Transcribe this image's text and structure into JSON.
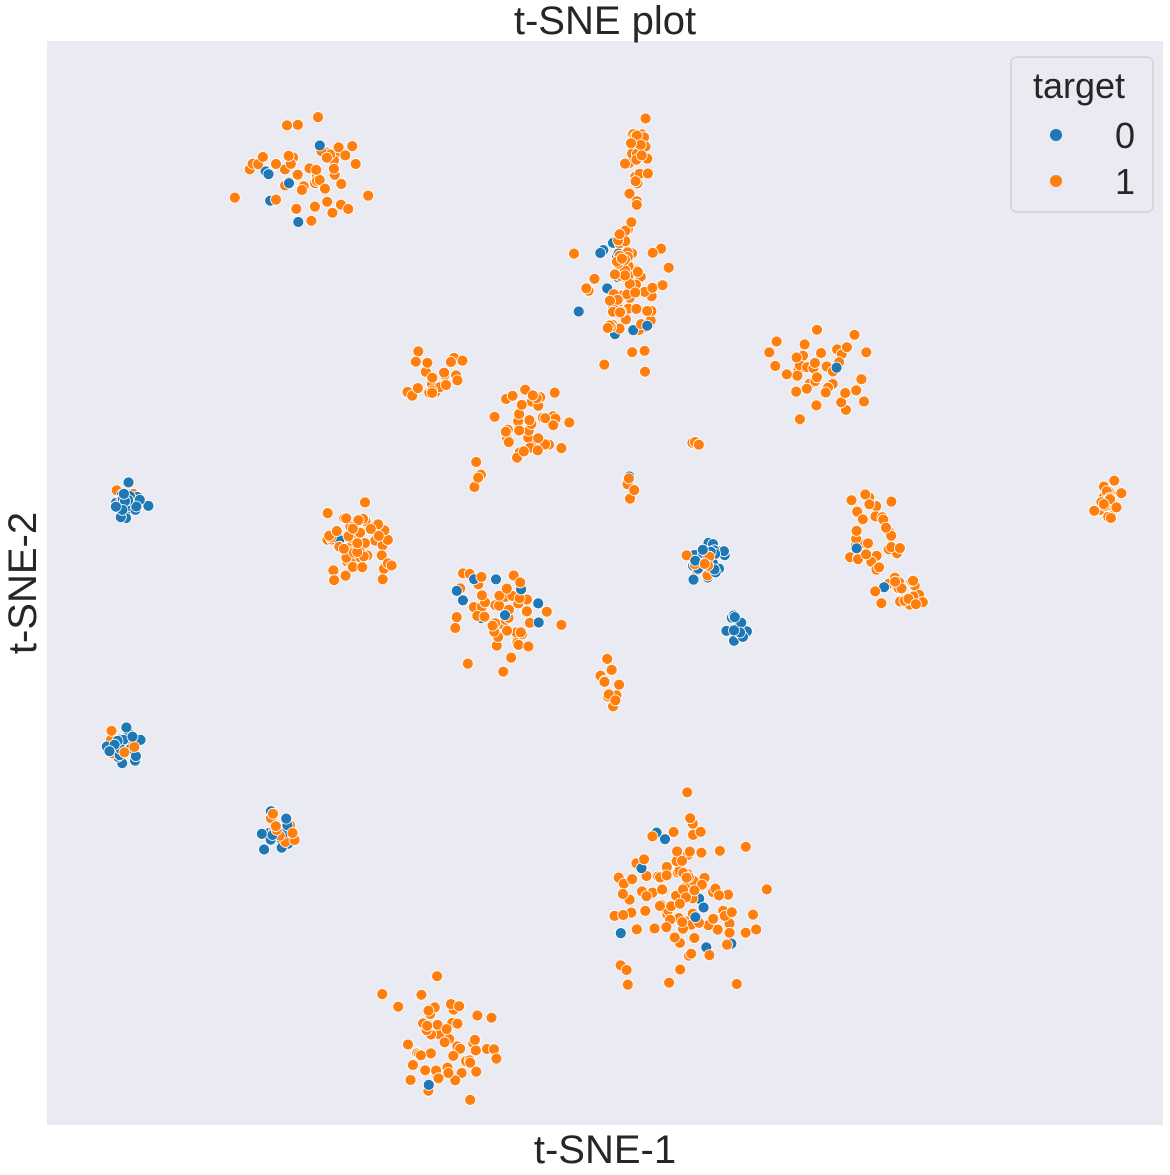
{
  "chart_data": {
    "type": "scatter",
    "title": "t-SNE plot",
    "xlabel": "t-SNE-1",
    "ylabel": "t-SNE-2",
    "xlim": [
      0,
      100
    ],
    "ylim": [
      0,
      100
    ],
    "ticks": "hidden",
    "grid": true,
    "legend": {
      "title": "target",
      "placement": "top-right",
      "entries": [
        {
          "label": "0",
          "color": "#1f77b4"
        },
        {
          "label": "1",
          "color": "#ff7f0e"
        }
      ]
    },
    "clusters": [
      {
        "center": [
          23,
          88
        ],
        "spread": [
          4.6,
          3.8
        ],
        "n": 55,
        "blue_fraction": 0.12
      },
      {
        "center": [
          52,
          77
        ],
        "spread": [
          2.5,
          5.5
        ],
        "n": 85,
        "blue_fraction": 0.12
      },
      {
        "center": [
          53,
          89
        ],
        "spread": [
          1.0,
          3.2
        ],
        "n": 30,
        "blue_fraction": 0.15
      },
      {
        "center": [
          35,
          69
        ],
        "spread": [
          2.4,
          2.0
        ],
        "n": 24,
        "blue_fraction": 0.0
      },
      {
        "center": [
          44,
          64
        ],
        "spread": [
          3.0,
          3.0
        ],
        "n": 40,
        "blue_fraction": 0.05
      },
      {
        "center": [
          69,
          69
        ],
        "spread": [
          3.5,
          3.0
        ],
        "n": 40,
        "blue_fraction": 0.08
      },
      {
        "center": [
          58,
          63
        ],
        "spread": [
          0.7,
          0.5
        ],
        "n": 3,
        "blue_fraction": 0.0
      },
      {
        "center": [
          38.5,
          60
        ],
        "spread": [
          0.3,
          1.0
        ],
        "n": 4,
        "blue_fraction": 0.0
      },
      {
        "center": [
          52,
          58.5
        ],
        "spread": [
          1.0,
          1.2
        ],
        "n": 6,
        "blue_fraction": 0.2
      },
      {
        "center": [
          7,
          57.5
        ],
        "spread": [
          1.5,
          1.2
        ],
        "n": 32,
        "blue_fraction": 0.9
      },
      {
        "center": [
          28,
          53.5
        ],
        "spread": [
          2.6,
          3.0
        ],
        "n": 55,
        "blue_fraction": 0.06
      },
      {
        "center": [
          59,
          52
        ],
        "spread": [
          1.4,
          1.4
        ],
        "n": 38,
        "blue_fraction": 0.85
      },
      {
        "center": [
          62,
          46
        ],
        "spread": [
          0.9,
          1.3
        ],
        "n": 16,
        "blue_fraction": 0.92
      },
      {
        "center": [
          74,
          55
        ],
        "spread": [
          2.0,
          2.5
        ],
        "n": 32,
        "blue_fraction": 0.05
      },
      {
        "center": [
          76.5,
          49.5
        ],
        "spread": [
          1.8,
          1.5
        ],
        "n": 24,
        "blue_fraction": 0.05
      },
      {
        "center": [
          95,
          57.5
        ],
        "spread": [
          1.0,
          1.4
        ],
        "n": 26,
        "blue_fraction": 0.04
      },
      {
        "center": [
          41,
          47
        ],
        "spread": [
          3.5,
          3.5
        ],
        "n": 60,
        "blue_fraction": 0.18
      },
      {
        "center": [
          50.5,
          40.5
        ],
        "spread": [
          0.8,
          2.2
        ],
        "n": 12,
        "blue_fraction": 0.0
      },
      {
        "center": [
          7,
          35
        ],
        "spread": [
          1.3,
          1.4
        ],
        "n": 28,
        "blue_fraction": 0.85
      },
      {
        "center": [
          21,
          27
        ],
        "spread": [
          1.4,
          1.5
        ],
        "n": 26,
        "blue_fraction": 0.55
      },
      {
        "center": [
          57,
          21
        ],
        "spread": [
          4.5,
          5.5
        ],
        "n": 110,
        "blue_fraction": 0.06
      },
      {
        "center": [
          36,
          8
        ],
        "spread": [
          4.0,
          4.0
        ],
        "n": 55,
        "blue_fraction": 0.02
      }
    ]
  }
}
